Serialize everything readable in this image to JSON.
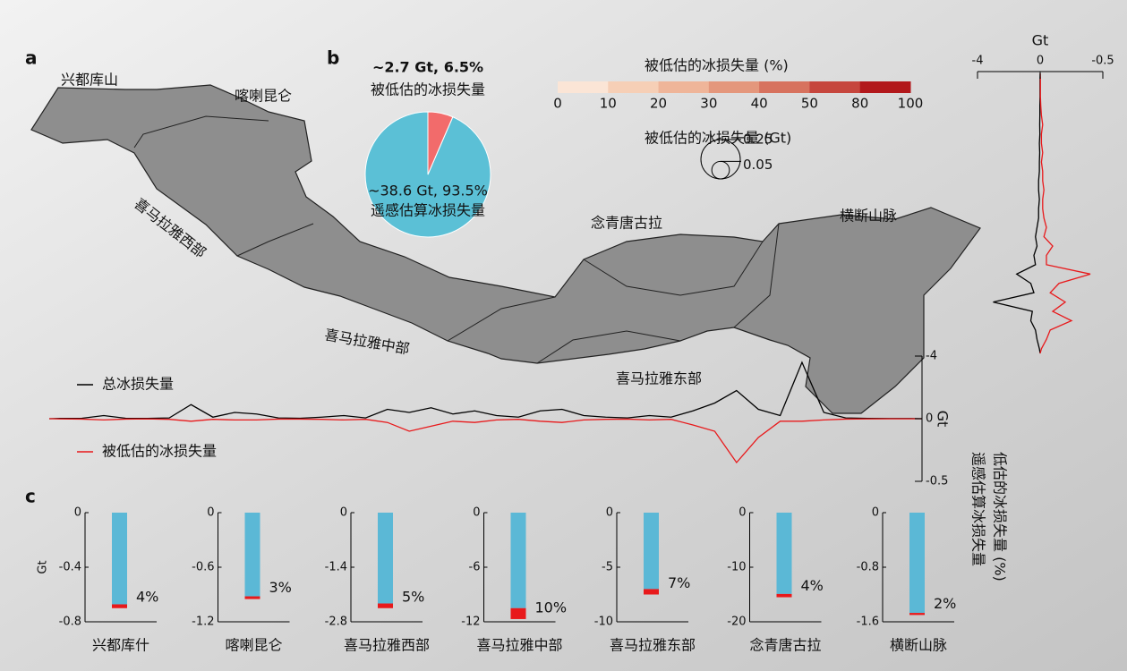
{
  "map": {
    "panel": "a",
    "labels": [
      "兴都库山",
      "喀喇昆仑",
      "喜马拉雅西部",
      "喜马拉雅中部",
      "喜马拉雅东部",
      "念青唐古拉",
      "横断山脉"
    ],
    "colorbar": {
      "title": "被低估的冰损失量 (%)",
      "ticks": [
        0,
        10,
        20,
        30,
        40,
        50,
        80,
        100
      ],
      "colors": [
        "#fbe5d6",
        "#f6cfb6",
        "#efb599",
        "#e4977c",
        "#d7725e",
        "#c6463d",
        "#b2181b"
      ]
    },
    "size_legend": {
      "title": "被低估的冰损失量 (Gt)",
      "sizes": [
        0.25,
        0.05
      ]
    }
  },
  "bar_legend": {
    "panel": "c",
    "labels": [
      "遥感估算冰损失量",
      "低估的冰损失量 (%)"
    ],
    "colors": [
      "#5bb8d6",
      "#e8191b"
    ]
  },
  "chart_data": [
    {
      "type": "pie",
      "panel": "b",
      "categories": [
        "遥感估算冰损失量",
        "被低估的冰损失量"
      ],
      "values": [
        93.5,
        6.5
      ],
      "value_labels": [
        "~38.6 Gt, 93.5%",
        "~2.7 Gt, 6.5%"
      ],
      "colors": [
        "#5bc0d6",
        "#f26b6b"
      ]
    },
    {
      "type": "line",
      "orientation": "horizontal",
      "ylabel": "Gt",
      "ylim": [
        0,
        -4
      ],
      "yticks": [
        -4,
        0
      ],
      "y2lim": [
        0,
        -0.5
      ],
      "y2ticks": [
        -0.5
      ],
      "series": [
        {
          "name": "总冰损失量",
          "color": "#000000",
          "values": [
            -0.02,
            -0.03,
            -0.2,
            -0.03,
            -0.02,
            -0.05,
            -0.9,
            -0.1,
            -0.4,
            -0.3,
            -0.05,
            -0.03,
            -0.1,
            -0.2,
            -0.05,
            -0.6,
            -0.4,
            -0.7,
            -0.3,
            -0.5,
            -0.2,
            -0.1,
            -0.5,
            -0.6,
            -0.2,
            -0.1,
            -0.05,
            -0.2,
            -0.1,
            -0.5,
            -1.0,
            -1.8,
            -0.6,
            -0.2,
            -3.6,
            -0.4,
            -0.05,
            -0.02,
            -0.01,
            -0.01
          ]
        },
        {
          "name": "被低估的冰损失量",
          "color": "#e8191b",
          "axis": "y2",
          "values": [
            -0.002,
            -0.003,
            -0.01,
            -0.003,
            -0.002,
            -0.005,
            -0.02,
            -0.005,
            -0.01,
            -0.01,
            -0.003,
            -0.003,
            -0.005,
            -0.01,
            -0.005,
            -0.03,
            -0.1,
            -0.06,
            -0.02,
            -0.03,
            -0.01,
            -0.005,
            -0.02,
            -0.03,
            -0.01,
            -0.005,
            -0.003,
            -0.01,
            -0.005,
            -0.05,
            -0.1,
            -0.35,
            -0.15,
            -0.02,
            -0.02,
            -0.01,
            -0.003,
            -0.002,
            -0.001,
            -0.001
          ]
        }
      ]
    },
    {
      "type": "line",
      "orientation": "vertical",
      "ylabel": "Gt",
      "ylim": [
        0,
        -4
      ],
      "yticks": [
        -4,
        0
      ],
      "y2lim": [
        0,
        -0.5
      ],
      "y2ticks": [
        -0.5
      ],
      "series": [
        {
          "color": "#000000",
          "values": [
            -0.01,
            -0.01,
            -0.01,
            -0.02,
            -0.02,
            -0.03,
            -0.02,
            -0.05,
            -0.03,
            -0.05,
            -0.05,
            -0.1,
            -0.1,
            -0.05,
            -0.1,
            -0.1,
            -0.2,
            -0.3,
            -0.2,
            -0.4,
            -0.3,
            -1.5,
            -0.6,
            -0.4,
            -3.0,
            -0.5,
            -0.6,
            -0.3,
            -0.2,
            -0.05
          ]
        },
        {
          "color": "#e8191b",
          "axis": "y2",
          "values": [
            -0.002,
            -0.002,
            -0.002,
            -0.005,
            -0.01,
            -0.02,
            -0.01,
            -0.01,
            -0.02,
            -0.01,
            -0.02,
            -0.02,
            -0.03,
            -0.02,
            -0.02,
            -0.03,
            -0.05,
            -0.03,
            -0.1,
            -0.05,
            -0.05,
            -0.4,
            -0.15,
            -0.08,
            -0.2,
            -0.1,
            -0.25,
            -0.08,
            -0.05,
            -0.01
          ]
        }
      ]
    },
    {
      "type": "bar",
      "title": "兴都库什",
      "ylabel": "Gt",
      "ylim": [
        0,
        -0.8
      ],
      "yticks": [
        0,
        -0.4,
        -0.8
      ],
      "series": [
        {
          "color": "#5bb8d6",
          "values": [
            -0.672
          ]
        },
        {
          "color": "#e8191b",
          "values": [
            -0.028
          ]
        }
      ],
      "annotation": "4%"
    },
    {
      "type": "bar",
      "title": "喀喇昆仑",
      "ylim": [
        0,
        -1.2
      ],
      "yticks": [
        0,
        -0.6,
        -1.2
      ],
      "series": [
        {
          "color": "#5bb8d6",
          "values": [
            -0.92
          ]
        },
        {
          "color": "#e8191b",
          "values": [
            -0.03
          ]
        }
      ],
      "annotation": "3%"
    },
    {
      "type": "bar",
      "title": "喜马拉雅西部",
      "ylim": [
        0,
        -2.8
      ],
      "yticks": [
        0,
        -1.4,
        -2.8
      ],
      "series": [
        {
          "color": "#5bb8d6",
          "values": [
            -2.33
          ]
        },
        {
          "color": "#e8191b",
          "values": [
            -0.12
          ]
        }
      ],
      "annotation": "5%"
    },
    {
      "type": "bar",
      "title": "喜马拉雅中部",
      "ylim": [
        0,
        -12
      ],
      "yticks": [
        0,
        -6,
        -12
      ],
      "series": [
        {
          "color": "#5bb8d6",
          "values": [
            -10.5
          ]
        },
        {
          "color": "#e8191b",
          "values": [
            -1.2
          ]
        }
      ],
      "annotation": "10%"
    },
    {
      "type": "bar",
      "title": "喜马拉雅东部",
      "ylim": [
        0,
        -10
      ],
      "yticks": [
        0,
        -5,
        -10
      ],
      "series": [
        {
          "color": "#5bb8d6",
          "values": [
            -7.0
          ]
        },
        {
          "color": "#e8191b",
          "values": [
            -0.5
          ]
        }
      ],
      "annotation": "7%"
    },
    {
      "type": "bar",
      "title": "念青唐古拉",
      "ylim": [
        0,
        -20
      ],
      "yticks": [
        0,
        -10,
        -20
      ],
      "series": [
        {
          "color": "#5bb8d6",
          "values": [
            -14.9
          ]
        },
        {
          "color": "#e8191b",
          "values": [
            -0.6
          ]
        }
      ],
      "annotation": "4%"
    },
    {
      "type": "bar",
      "title": "横断山脉",
      "ylim": [
        0,
        -1.6
      ],
      "yticks": [
        0,
        -0.8,
        -1.6
      ],
      "series": [
        {
          "color": "#5bb8d6",
          "values": [
            -1.47
          ]
        },
        {
          "color": "#e8191b",
          "values": [
            -0.03
          ]
        }
      ],
      "annotation": "2%"
    }
  ]
}
